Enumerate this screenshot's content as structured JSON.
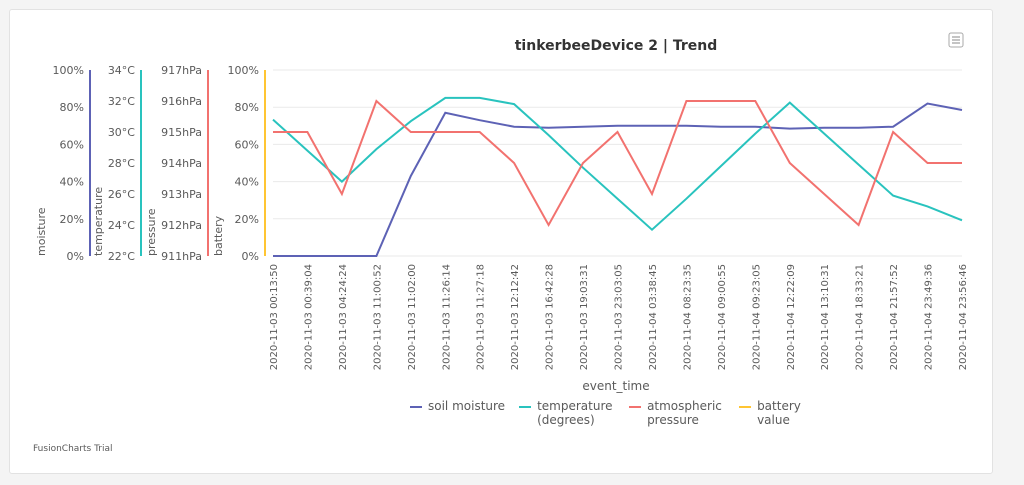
{
  "chart_data": {
    "type": "line",
    "title": "tinkerbeeDevice 2 | Trend",
    "x_label": "event_time",
    "credit": "FusionCharts Trial",
    "categories": [
      "2020-11-03 00:13:50",
      "2020-11-03 00:39:04",
      "2020-11-03 04:24:24",
      "2020-11-03 11:00:52",
      "2020-11-03 11:02:00",
      "2020-11-03 11:26:14",
      "2020-11-03 11:27:18",
      "2020-11-03 12:12:42",
      "2020-11-03 16:42:28",
      "2020-11-03 19:03:31",
      "2020-11-03 23:03:05",
      "2020-11-04 03:38:45",
      "2020-11-04 08:23:35",
      "2020-11-04 09:00:55",
      "2020-11-04 09:23:05",
      "2020-11-04 12:22:09",
      "2020-11-04 13:10:31",
      "2020-11-04 18:33:21",
      "2020-11-04 21:57:52",
      "2020-11-04 23:49:36",
      "2020-11-04 23:56:46"
    ],
    "yaxes": [
      {
        "title": "moisture",
        "color": "#5d62b5",
        "ylim": [
          0,
          100
        ],
        "yticks": [
          {
            "value": 0,
            "label": "0%"
          },
          {
            "value": 20,
            "label": "20%"
          },
          {
            "value": 40,
            "label": "40%"
          },
          {
            "value": 60,
            "label": "60%"
          },
          {
            "value": 80,
            "label": "80%"
          },
          {
            "value": 100,
            "label": "100%"
          }
        ]
      },
      {
        "title": "temperature",
        "color": "#29c3be",
        "ylim": [
          22,
          34
        ],
        "yticks": [
          {
            "value": 22,
            "label": "22°C"
          },
          {
            "value": 24,
            "label": "24°C"
          },
          {
            "value": 26,
            "label": "26°C"
          },
          {
            "value": 28,
            "label": "28°C"
          },
          {
            "value": 30,
            "label": "30°C"
          },
          {
            "value": 32,
            "label": "32°C"
          },
          {
            "value": 34,
            "label": "34°C"
          }
        ]
      },
      {
        "title": "pressure",
        "color": "#f2726f",
        "ylim": [
          911,
          917
        ],
        "yticks": [
          {
            "value": 911,
            "label": "911hPa"
          },
          {
            "value": 912,
            "label": "912hPa"
          },
          {
            "value": 913,
            "label": "913hPa"
          },
          {
            "value": 914,
            "label": "914hPa"
          },
          {
            "value": 915,
            "label": "915hPa"
          },
          {
            "value": 916,
            "label": "916hPa"
          },
          {
            "value": 917,
            "label": "917hPa"
          }
        ]
      },
      {
        "title": "battery",
        "color": "#ffc533",
        "ylim": [
          0,
          100
        ],
        "yticks": [
          {
            "value": 0,
            "label": "0%"
          },
          {
            "value": 20,
            "label": "20%"
          },
          {
            "value": 40,
            "label": "40%"
          },
          {
            "value": 60,
            "label": "60%"
          },
          {
            "value": 80,
            "label": "80%"
          },
          {
            "value": 100,
            "label": "100%"
          }
        ]
      }
    ],
    "grid": true,
    "series": [
      {
        "name": "soil moisture",
        "color": "#5d62b5",
        "axis": 0,
        "values": [
          0,
          0,
          0,
          0,
          43,
          77,
          73,
          69.5,
          69,
          69.5,
          70,
          70,
          70,
          69.5,
          69.5,
          68.5,
          69,
          69,
          69.5,
          82,
          78.5
        ]
      },
      {
        "name": "temperature (degrees)",
        "color": "#29c3be",
        "axis": 1,
        "values": [
          30.8,
          28.8,
          26.8,
          28.9,
          30.7,
          32.2,
          32.2,
          31.8,
          29.8,
          27.7,
          25.7,
          23.7,
          25.7,
          27.8,
          29.9,
          31.9,
          29.9,
          27.9,
          25.9,
          25.2,
          24.3
        ]
      },
      {
        "name": "atmospheric pressure",
        "color": "#f2726f",
        "axis": 2,
        "values": [
          915,
          915,
          913,
          916,
          915,
          915,
          915,
          914,
          912,
          914,
          915,
          913,
          916,
          916,
          916,
          914,
          913,
          912,
          915,
          914,
          914
        ]
      },
      {
        "name": "battery value",
        "color": "#ffc533",
        "axis": 3,
        "values": [
          null,
          null,
          null,
          null,
          null,
          null,
          null,
          null,
          null,
          null,
          null,
          null,
          null,
          null,
          null,
          null,
          null,
          null,
          null,
          null,
          null
        ]
      }
    ]
  }
}
